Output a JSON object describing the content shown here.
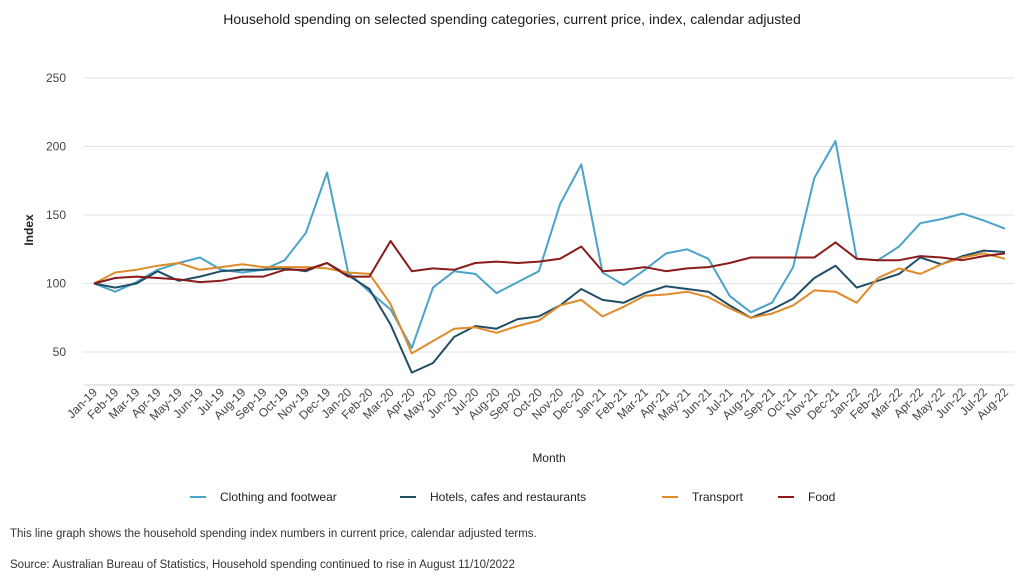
{
  "chart_data": {
    "type": "line",
    "title": "Household spending on selected spending categories, current price, index, calendar adjusted",
    "xlabel": "Month",
    "ylabel": "Index",
    "ylim": [
      25,
      250
    ],
    "yticks": [
      50,
      100,
      150,
      200,
      250
    ],
    "grid": "horizontal",
    "legend_position": "bottom",
    "categories": [
      "Jan-19",
      "Feb-19",
      "Mar-19",
      "Apr-19",
      "May-19",
      "Jun-19",
      "Jul-19",
      "Aug-19",
      "Sep-19",
      "Oct-19",
      "Nov-19",
      "Dec-19",
      "Jan-20",
      "Feb-20",
      "Mar-20",
      "Apr-20",
      "May-20",
      "Jun-20",
      "Jul-20",
      "Aug-20",
      "Sep-20",
      "Oct-20",
      "Nov-20",
      "Dec-20",
      "Jan-21",
      "Feb-21",
      "Mar-21",
      "Apr-21",
      "May-21",
      "Jun-21",
      "Jul-21",
      "Aug-21",
      "Sep-21",
      "Oct-21",
      "Nov-21",
      "Dec-21",
      "Jan-22",
      "Feb-22",
      "Mar-22",
      "Apr-22",
      "May-22",
      "Jun-22",
      "Jul-22",
      "Aug-22"
    ],
    "series": [
      {
        "name": "Clothing and footwear",
        "color": "#4aa3c8",
        "values": [
          100,
          94,
          101,
          110,
          115,
          119,
          110,
          108,
          110,
          117,
          137,
          181,
          108,
          94,
          81,
          53,
          97,
          109,
          107,
          93,
          101,
          109,
          158,
          187,
          108,
          99,
          110,
          122,
          125,
          118,
          91,
          79,
          86,
          112,
          177,
          204,
          118,
          117,
          127,
          144,
          147,
          151,
          146,
          140
        ]
      },
      {
        "name": "Hotels, cafes and restaurants",
        "color": "#1f4e66",
        "values": [
          100,
          97,
          100,
          109,
          102,
          105,
          109,
          110,
          110,
          111,
          109,
          115,
          106,
          96,
          70,
          35,
          42,
          61,
          69,
          67,
          74,
          76,
          84,
          96,
          88,
          86,
          93,
          98,
          96,
          94,
          84,
          75,
          81,
          89,
          104,
          113,
          97,
          102,
          107,
          119,
          114,
          120,
          124,
          123
        ]
      },
      {
        "name": "Transport",
        "color": "#e08a2a",
        "values": [
          100,
          108,
          110,
          113,
          115,
          110,
          112,
          114,
          112,
          112,
          112,
          111,
          108,
          107,
          85,
          49,
          58,
          67,
          68,
          64,
          69,
          73,
          84,
          88,
          76,
          83,
          91,
          92,
          94,
          90,
          82,
          75,
          78,
          84,
          95,
          94,
          86,
          104,
          111,
          107,
          114,
          119,
          122,
          118
        ]
      },
      {
        "name": "Food",
        "color": "#8b1a1a",
        "values": [
          100,
          104,
          105,
          104,
          103,
          101,
          102,
          105,
          105,
          110,
          110,
          115,
          105,
          105,
          131,
          109,
          111,
          110,
          115,
          116,
          115,
          116,
          118,
          127,
          109,
          110,
          112,
          109,
          111,
          112,
          115,
          119,
          119,
          119,
          119,
          130,
          118,
          117,
          117,
          120,
          119,
          117,
          120,
          122
        ]
      }
    ]
  },
  "caption": "This line graph shows the household spending index numbers in current price, calendar adjusted terms.",
  "source": "Source: Australian Bureau of Statistics, Household spending continued to rise in August 11/10/2022"
}
